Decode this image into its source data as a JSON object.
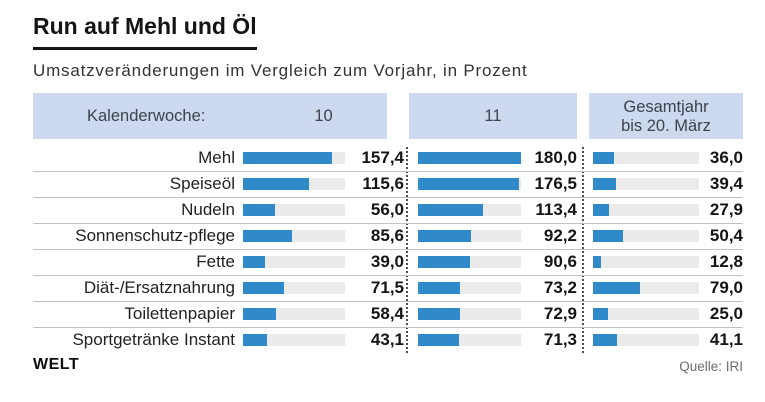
{
  "title": "Run auf Mehl und Öl",
  "subtitle": "Umsatzveränderungen im Vergleich zum Vorjahr, in Prozent",
  "header": {
    "label": "Kalenderwoche:",
    "week10": "10",
    "week11": "11",
    "total_line1": "Gesamtjahr",
    "total_line2": "bis 20. März"
  },
  "chart_data": {
    "type": "bar",
    "orientation": "horizontal",
    "title": "Run auf Mehl und Öl",
    "subtitle": "Umsatzveränderungen im Vergleich zum Vorjahr, in Prozent",
    "unit": "Prozent",
    "number_format": "german-comma-1-decimal",
    "xmax": 180,
    "categories": [
      "Mehl",
      "Speiseöl",
      "Nudeln",
      "Sonnenschutz-pflege",
      "Fette",
      "Diät-/Ersatznahrung",
      "Toilettenpapier",
      "Sportgetränke Instant"
    ],
    "series": [
      {
        "name": "Kalenderwoche 10",
        "values": [
          157.4,
          115.6,
          56.0,
          85.6,
          39.0,
          71.5,
          58.4,
          43.1
        ]
      },
      {
        "name": "Kalenderwoche 11",
        "values": [
          180.0,
          176.5,
          113.4,
          92.2,
          90.6,
          73.2,
          72.9,
          71.3
        ]
      },
      {
        "name": "Gesamtjahr bis 20. März",
        "values": [
          36.0,
          39.4,
          27.9,
          50.4,
          12.8,
          79.0,
          25.0,
          41.1
        ]
      }
    ],
    "legend_position": "top-header-band",
    "grid": "off"
  },
  "footer": {
    "brand": "WELT",
    "source": "Quelle: IRI"
  },
  "colors": {
    "bar": "#3089c8",
    "header_band": "#cdd9ee",
    "bar_track": "#ebebeb",
    "separator": "#c2c2c2",
    "title_text": "#141414",
    "header_text": "#3c434c",
    "source_text": "#6d6d6d"
  }
}
